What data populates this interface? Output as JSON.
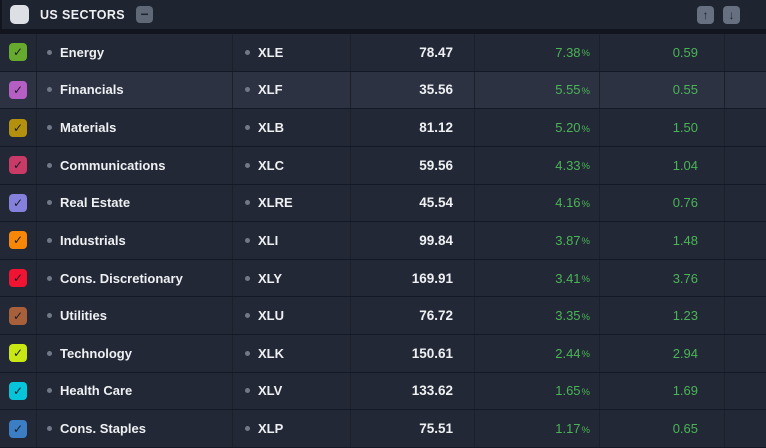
{
  "header": {
    "title": "US SECTORS",
    "select_all_checked": false,
    "icons": {
      "collapse": "minus-icon",
      "scroll_up": "arrow-up-icon",
      "scroll_down": "arrow-down-icon"
    }
  },
  "percent_suffix": "%",
  "check_glyph": "✓",
  "colors": {
    "positive_text": "#4ab456",
    "row_background": "#232836",
    "highlighted_row_background": "#2c3242"
  },
  "table": {
    "columns": [
      "checkbox",
      "sector",
      "ticker",
      "last_price",
      "change_percent",
      "change"
    ],
    "rows": [
      {
        "name": "Energy",
        "ticker": "XLE",
        "price": "78.47",
        "change_pct": "7.38",
        "change": "0.59",
        "checkbox_color": "#67ab2e",
        "checked": true,
        "highlighted": false
      },
      {
        "name": "Financials",
        "ticker": "XLF",
        "price": "35.56",
        "change_pct": "5.55",
        "change": "0.55",
        "checkbox_color": "#b55ec4",
        "checked": true,
        "highlighted": true
      },
      {
        "name": "Materials",
        "ticker": "XLB",
        "price": "81.12",
        "change_pct": "5.20",
        "change": "1.50",
        "checkbox_color": "#b3900d",
        "checked": true,
        "highlighted": false
      },
      {
        "name": "Communications",
        "ticker": "XLC",
        "price": "59.56",
        "change_pct": "4.33",
        "change": "1.04",
        "checkbox_color": "#c93a67",
        "checked": true,
        "highlighted": false
      },
      {
        "name": "Real Estate",
        "ticker": "XLRE",
        "price": "45.54",
        "change_pct": "4.16",
        "change": "0.76",
        "checkbox_color": "#8580dc",
        "checked": true,
        "highlighted": false
      },
      {
        "name": "Industrials",
        "ticker": "XLI",
        "price": "99.84",
        "change_pct": "3.87",
        "change": "1.48",
        "checkbox_color": "#f88708",
        "checked": true,
        "highlighted": false
      },
      {
        "name": "Cons. Discretionary",
        "ticker": "XLY",
        "price": "169.91",
        "change_pct": "3.41",
        "change": "3.76",
        "checkbox_color": "#f01332",
        "checked": true,
        "highlighted": false
      },
      {
        "name": "Utilities",
        "ticker": "XLU",
        "price": "76.72",
        "change_pct": "3.35",
        "change": "1.23",
        "checkbox_color": "#a7603a",
        "checked": true,
        "highlighted": false
      },
      {
        "name": "Technology",
        "ticker": "XLK",
        "price": "150.61",
        "change_pct": "2.44",
        "change": "2.94",
        "checkbox_color": "#c9e712",
        "checked": true,
        "highlighted": false
      },
      {
        "name": "Health Care",
        "ticker": "XLV",
        "price": "133.62",
        "change_pct": "1.65",
        "change": "1.69",
        "checkbox_color": "#06c4d9",
        "checked": true,
        "highlighted": false
      },
      {
        "name": "Cons. Staples",
        "ticker": "XLP",
        "price": "75.51",
        "change_pct": "1.17",
        "change": "0.65",
        "checkbox_color": "#3b7ec4",
        "checked": true,
        "highlighted": false
      }
    ]
  }
}
